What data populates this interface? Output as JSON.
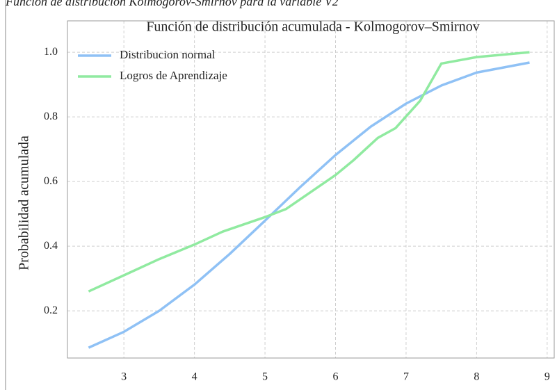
{
  "caption": "Función de distribución Kolmogorov-Smirnov para la variable V2",
  "chart_data": {
    "type": "line",
    "title": "Función de distribución acumulada - Kolmogorov–Smirnov",
    "ylabel": "Probabilidad acumulada",
    "xlim": [
      2.2,
      9.1
    ],
    "ylim": [
      0.054,
      1.097
    ],
    "xticks": [
      3,
      4,
      5,
      6,
      7,
      8,
      9
    ],
    "yticks": [
      0.2,
      0.4,
      0.6,
      0.8,
      {
        "value": 1,
        "label": "1.0"
      }
    ],
    "grid": true,
    "legend": "upper left",
    "series": [
      {
        "name": "Distribucion normal",
        "color": "#8fc1f5",
        "x": [
          2.5,
          3,
          3.5,
          4,
          4.5,
          5,
          5.5,
          6,
          6.5,
          7,
          7.5,
          8,
          8.75
        ],
        "values": [
          0.086,
          0.135,
          0.2,
          0.281,
          0.376,
          0.479,
          0.583,
          0.682,
          0.77,
          0.841,
          0.897,
          0.937,
          0.968
        ]
      },
      {
        "name": "Logros de Aprendizaje",
        "color": "#90eaa0",
        "x": [
          2.5,
          3,
          3.5,
          4,
          4.4,
          5,
          5.3,
          6,
          6.25,
          6.6,
          6.85,
          7.2,
          7.5,
          8,
          8.75
        ],
        "values": [
          0.26,
          0.31,
          0.36,
          0.405,
          0.445,
          0.49,
          0.515,
          0.62,
          0.665,
          0.735,
          0.765,
          0.85,
          0.965,
          0.985,
          1.0
        ]
      }
    ]
  }
}
